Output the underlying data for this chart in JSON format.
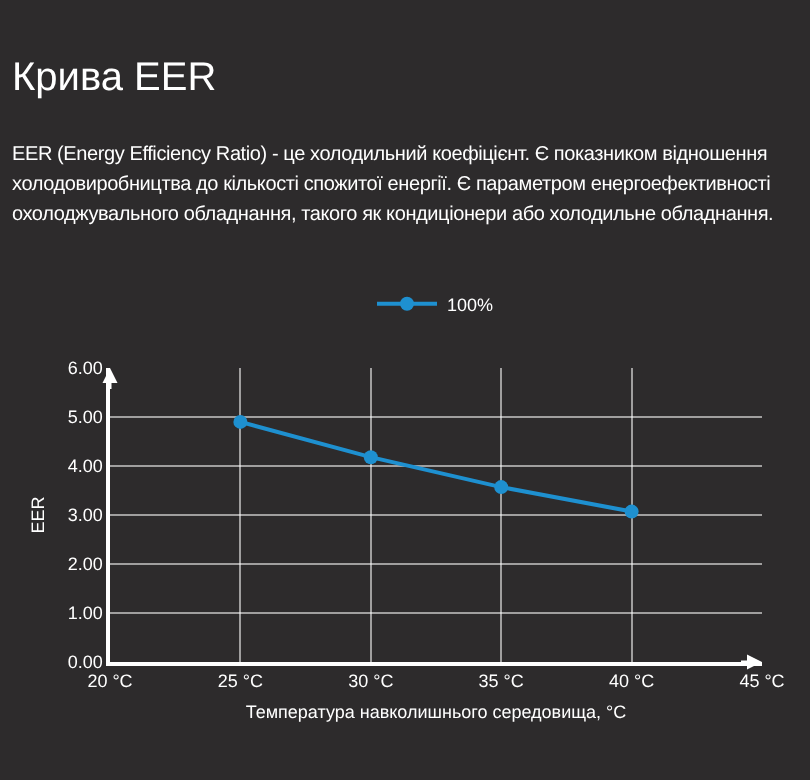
{
  "chart_data": {
    "type": "line",
    "title": "Крива EER",
    "subtitle": "EER (Energy Efficiency Ratio) - це холодильний коефіцієнт. Є показником відношення холодовиробництва до кількості спожитої енергії. Є параметром енергоефективності охолоджувального обладнання, такого як кондиціонери або холодильне обладнання.",
    "xlabel": "Температура навколишнього середовища, °C",
    "ylabel": "EER",
    "x": [
      25,
      30,
      35,
      40
    ],
    "series": [
      {
        "name": "100%",
        "color": "#1e90d0",
        "values": [
          4.9,
          4.18,
          3.57,
          3.07
        ]
      }
    ],
    "xlim": [
      20,
      45
    ],
    "xticks": [
      {
        "value": 20,
        "label": "20 °C"
      },
      {
        "value": 25,
        "label": "25 °C"
      },
      {
        "value": 30,
        "label": "30 °C"
      },
      {
        "value": 35,
        "label": "35 °C"
      },
      {
        "value": 40,
        "label": "40 °C"
      },
      {
        "value": 45,
        "label": "45 °C"
      }
    ],
    "ylim": [
      0,
      6
    ],
    "yticks": [
      {
        "value": 0,
        "label": "0.00"
      },
      {
        "value": 1,
        "label": "1.00"
      },
      {
        "value": 2,
        "label": "2.00"
      },
      {
        "value": 3,
        "label": "3.00"
      },
      {
        "value": 4,
        "label": "4.00"
      },
      {
        "value": 5,
        "label": "5.00"
      },
      {
        "value": 6,
        "label": "6.00"
      }
    ],
    "grid": true,
    "legend": "top",
    "marker": "circle",
    "line_style": "solid"
  }
}
